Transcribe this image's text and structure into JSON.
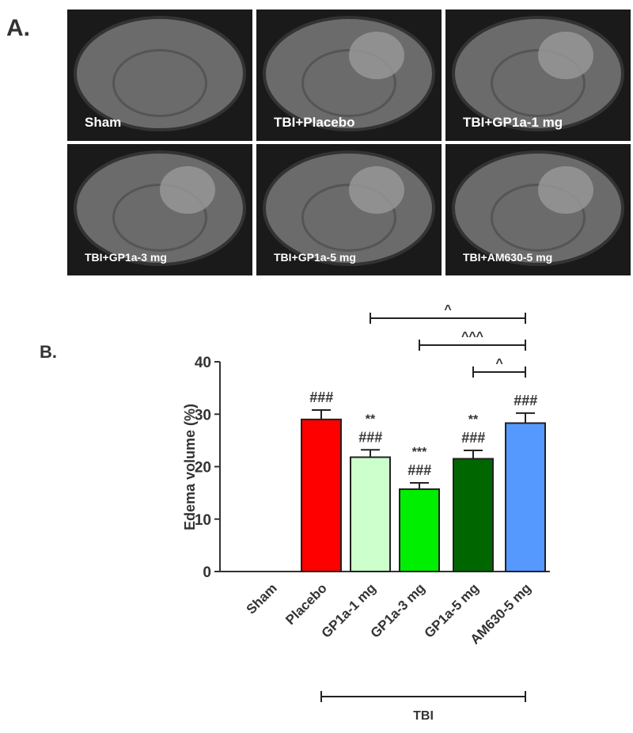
{
  "panel_a": {
    "label": "A.",
    "images": [
      "Sham",
      "TBI+Placebo",
      "TBI+GP1a-1 mg",
      "TBI+GP1a-3 mg",
      "TBI+GP1a-5 mg",
      "TBI+AM630-5 mg"
    ]
  },
  "chart_data": {
    "type": "bar",
    "panel_label": "B.",
    "ylabel": "Edema volume (%)",
    "categories": [
      "Sham",
      "Placebo",
      "GP1a-1 mg",
      "GP1a-3 mg",
      "GP1a-5 mg",
      "AM630-5 mg"
    ],
    "values": [
      0,
      29,
      21.8,
      15.7,
      21.5,
      28.3
    ],
    "errors": [
      null,
      1.8,
      1.4,
      1.2,
      1.6,
      1.9
    ],
    "colors": [
      "#888888",
      "#ff0000",
      "#ccffcc",
      "#00ee00",
      "#006600",
      "#5599ff"
    ],
    "markers_vs_sham": [
      null,
      "###",
      "###",
      "###",
      "###",
      "###"
    ],
    "markers_vs_placebo": [
      null,
      null,
      "**",
      "***",
      "**",
      null
    ],
    "comparisons": [
      {
        "from": 2,
        "to": 5,
        "label": "^"
      },
      {
        "from": 3,
        "to": 5,
        "label": "^^^"
      },
      {
        "from": 4,
        "to": 5,
        "label": "^"
      }
    ],
    "group": {
      "from": 1,
      "to": 5,
      "label": "TBI"
    },
    "ylim": [
      0,
      40
    ],
    "yticks": [
      0,
      10,
      20,
      30,
      40
    ]
  }
}
